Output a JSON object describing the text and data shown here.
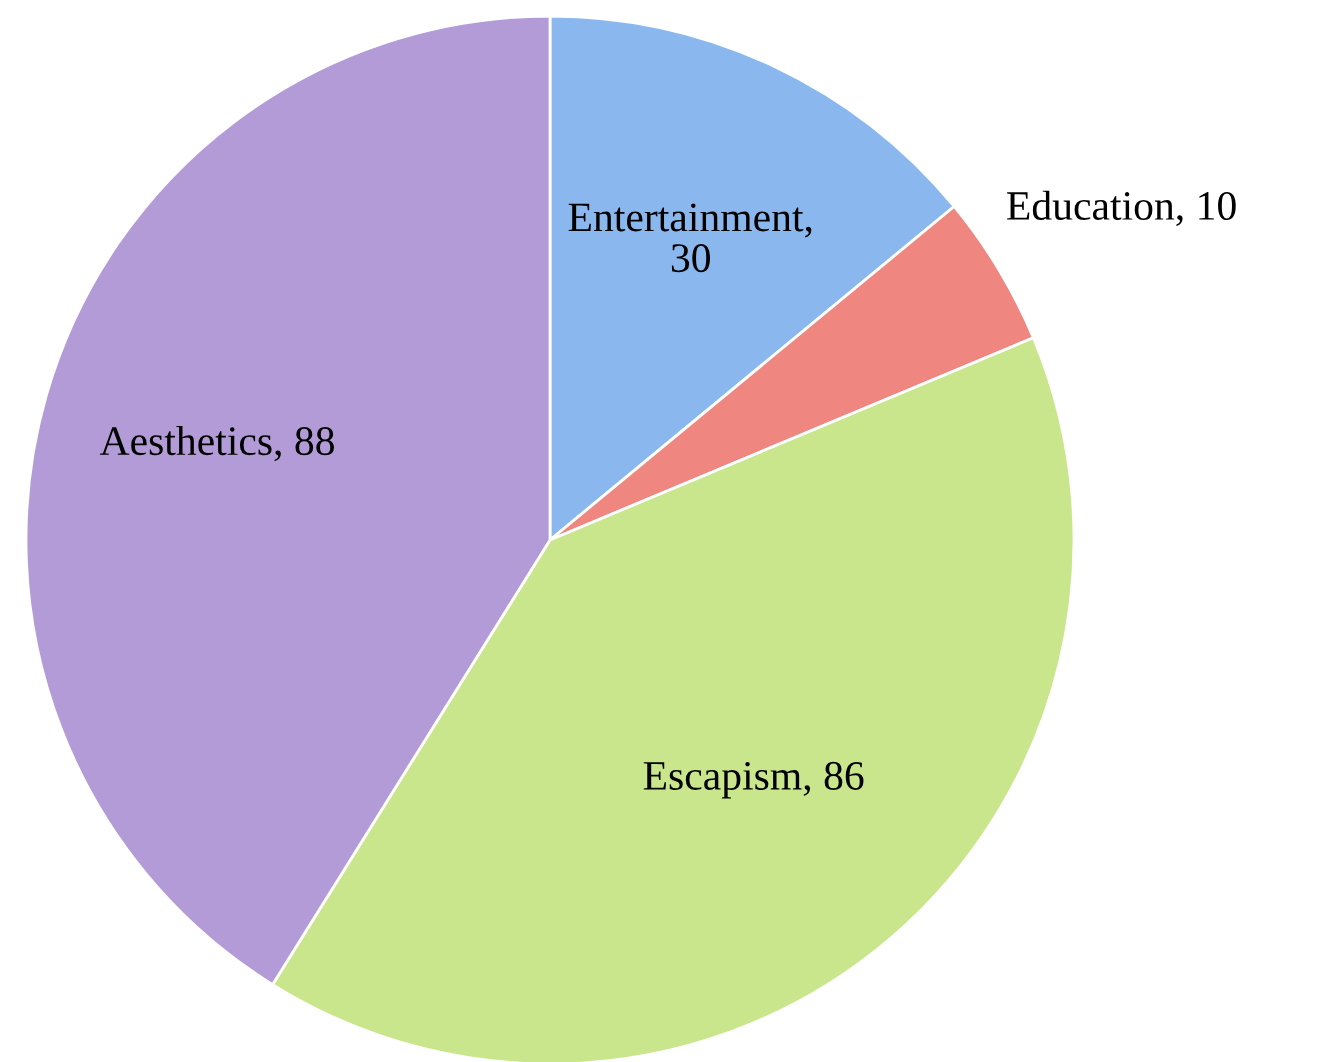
{
  "chart_data": {
    "type": "pie",
    "categories": [
      "Entertainment,\n30",
      "Education, 10",
      "Escapism, 86",
      "Aesthetics, 88"
    ],
    "values": [
      30,
      10,
      86,
      88
    ],
    "colors": [
      "#8ab8ee",
      "#ef8680",
      "#c9e68c",
      "#b29bd6"
    ],
    "legend": false
  }
}
